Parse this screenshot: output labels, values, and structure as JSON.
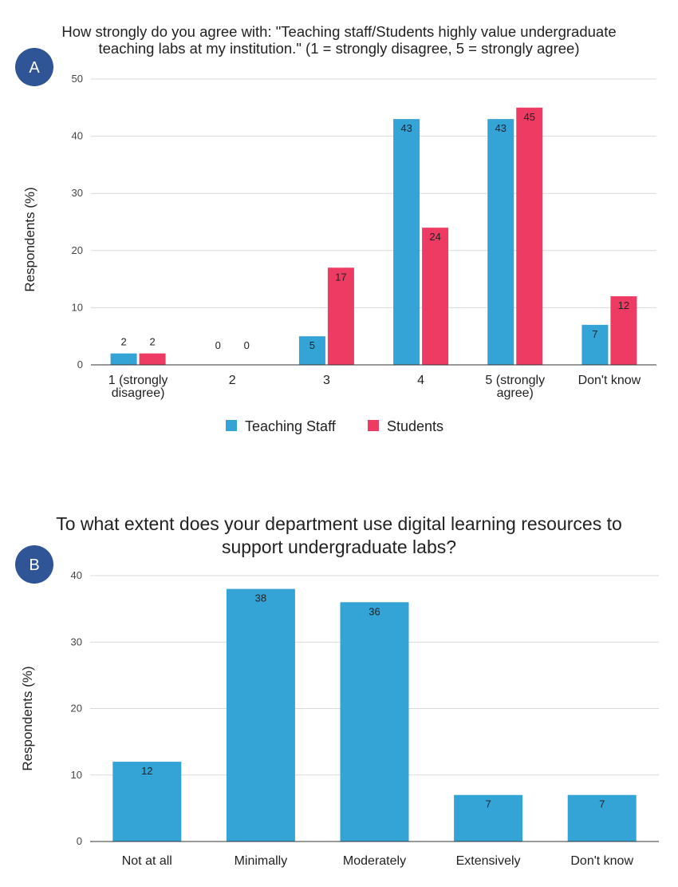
{
  "chart_data": [
    {
      "type": "bar",
      "panel_label": "A",
      "title_lines": [
        "How strongly do you agree with: \"Teaching staff/Students highly value undergraduate",
        "teaching labs at my institution.\" (1 = strongly disagree, 5 = strongly agree)"
      ],
      "ylabel": "Respondents (%)",
      "ylim": [
        0,
        50
      ],
      "yticks": [
        "0",
        "10",
        "20",
        "30",
        "40",
        "50"
      ],
      "categories": [
        [
          "1 (strongly",
          "disagree)"
        ],
        [
          "2"
        ],
        [
          "3"
        ],
        [
          "4"
        ],
        [
          "5 (strongly",
          "agree)"
        ],
        [
          "Don't know"
        ]
      ],
      "series": [
        {
          "name": "Teaching Staff",
          "color": "#34A3D6",
          "values": [
            2,
            0,
            5,
            43,
            43,
            7
          ],
          "labels": [
            "2",
            "0",
            "5",
            "43",
            "43",
            "7"
          ]
        },
        {
          "name": "Students",
          "color": "#EE3B63",
          "values": [
            2,
            0,
            17,
            24,
            45,
            12
          ],
          "labels": [
            "2",
            "0",
            "17",
            "24",
            "45",
            "12"
          ]
        }
      ],
      "legend_position": "bottom",
      "grid": true
    },
    {
      "type": "bar",
      "panel_label": "B",
      "title_lines": [
        "To what extent does your department use digital learning resources to",
        "support undergraduate labs?"
      ],
      "ylabel": "Respondents (%)",
      "ylim": [
        0,
        40
      ],
      "yticks": [
        "0",
        "10",
        "20",
        "30",
        "40"
      ],
      "categories": [
        [
          "Not at all"
        ],
        [
          "Minimally"
        ],
        [
          "Moderately"
        ],
        [
          "Extensively"
        ],
        [
          "Don't know"
        ]
      ],
      "series": [
        {
          "color": "#34A3D6",
          "values": [
            12,
            38,
            36,
            7,
            7
          ],
          "labels": [
            "12",
            "38",
            "36",
            "7",
            "7"
          ]
        }
      ],
      "grid": true
    }
  ],
  "colors": {
    "badge": "#2F5597",
    "grid": "#d9d9d9",
    "axis": "#333333"
  }
}
